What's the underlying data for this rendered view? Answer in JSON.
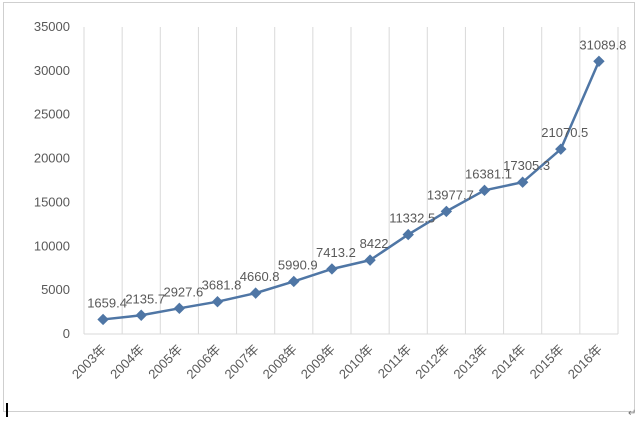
{
  "chart_data": {
    "type": "line",
    "title": "",
    "xlabel": "",
    "ylabel": "",
    "categories": [
      "2003年",
      "2004年",
      "2005年",
      "2006年",
      "2007年",
      "2008年",
      "2009年",
      "2010年",
      "2011年",
      "2012年",
      "2013年",
      "2014年",
      "2015年",
      "2016年"
    ],
    "series": [
      {
        "values": [
          1659.4,
          2135.7,
          2927.6,
          3681.8,
          4660.8,
          5990.9,
          7413.2,
          8422,
          11332.5,
          13977.7,
          16381.1,
          17305.3,
          21070.5,
          31089.8
        ],
        "labels": [
          "1659.4",
          "2135.7",
          "2927.6",
          "3681.8",
          "4660.8",
          "5990.9",
          "7413.2",
          "8422",
          "11332.5",
          "13977.7",
          "16381.1",
          "17305.3",
          "21070.5",
          "31089.8"
        ],
        "color": "#4f76a5",
        "marker": "diamond"
      }
    ],
    "ylim": [
      0,
      35000
    ],
    "yticks": [
      0,
      5000,
      10000,
      15000,
      20000,
      25000,
      30000,
      35000
    ],
    "ytick_labels": [
      "0",
      "5000",
      "10000",
      "15000",
      "20000",
      "25000",
      "30000",
      "35000"
    ],
    "grid": "vertical",
    "grid_color": "#d9d9d9",
    "legend": "none"
  },
  "page": {
    "return_mark": "↵"
  }
}
